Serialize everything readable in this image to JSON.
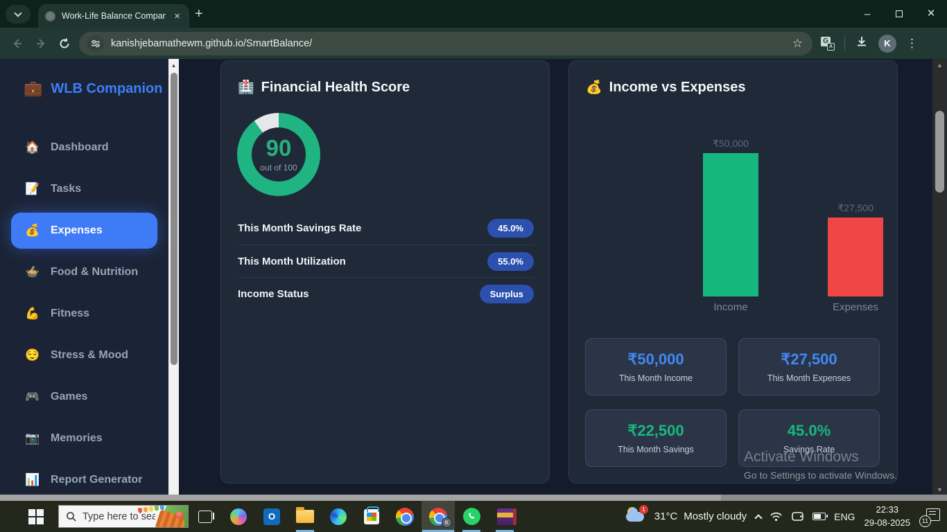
{
  "browser": {
    "tab_title": "Work-Life Balance Companion",
    "url": "kanishjebamathewm.github.io/SmartBalance/",
    "avatar": "K"
  },
  "glyphs": {
    "star": "☆",
    "kebab": "⋮",
    "new_tab": "+",
    "close_tab": "×",
    "minimize": "–",
    "close_window": "×",
    "scroll_up": "▲",
    "scroll_down": "▼",
    "translate_g": "G",
    "translate_a": "A",
    "outlook_o": "O"
  },
  "sidebar": {
    "icon": "💼",
    "title": "WLB Companion",
    "items": [
      {
        "icon": "🏠",
        "label": "Dashboard"
      },
      {
        "icon": "📝",
        "label": "Tasks"
      },
      {
        "icon": "💰",
        "label": "Expenses"
      },
      {
        "icon": "🍲",
        "label": "Food & Nutrition"
      },
      {
        "icon": "💪",
        "label": "Fitness"
      },
      {
        "icon": "😌",
        "label": "Stress & Mood"
      },
      {
        "icon": "🎮",
        "label": "Games"
      },
      {
        "icon": "📷",
        "label": "Memories"
      },
      {
        "icon": "📊",
        "label": "Report Generator"
      }
    ]
  },
  "health_card": {
    "icon": "🏥",
    "title": "Financial Health Score",
    "score": 90,
    "score_max": 100,
    "score_display": "90",
    "score_caption": "out of 100",
    "donut_color": "#1fb481",
    "donut_rest_color": "#e5e7e8",
    "metrics": [
      {
        "label": "This Month Savings Rate",
        "value": "45.0%"
      },
      {
        "label": "This Month Utilization",
        "value": "55.0%"
      },
      {
        "label": "Income Status",
        "value": "Surplus"
      }
    ]
  },
  "income_card": {
    "icon": "💰",
    "title": "Income vs Expenses",
    "stats": [
      {
        "value": "₹50,000",
        "label": "This Month Income",
        "color": "#4189f5"
      },
      {
        "value": "₹27,500",
        "label": "This Month Expenses",
        "color": "#4189f5"
      },
      {
        "value": "₹22,500",
        "label": "This Month Savings",
        "color": "#17b87e"
      },
      {
        "value": "45.0%",
        "label": "Savings Rate",
        "color": "#17b87e"
      }
    ]
  },
  "chart_data": {
    "type": "bar",
    "title": "Income vs Expenses",
    "categories": [
      "Income",
      "Expenses"
    ],
    "values": [
      50000,
      27500
    ],
    "value_labels": [
      "₹50,000",
      "₹27,500"
    ],
    "colors": [
      "#16b77f",
      "#ef4545"
    ],
    "ylim": [
      0,
      50000
    ],
    "grid": false,
    "legend": "none"
  },
  "watermark": {
    "line1": "Activate Windows",
    "line2": "Go to Settings to activate Windows."
  },
  "taskbar": {
    "search_placeholder": "Type here to search",
    "weather": {
      "temp": "31°C",
      "desc": "Mostly cloudy",
      "badge": "1"
    },
    "language": "ENG",
    "time": "22:33",
    "date": "29-08-2025",
    "notification_count": "11"
  }
}
